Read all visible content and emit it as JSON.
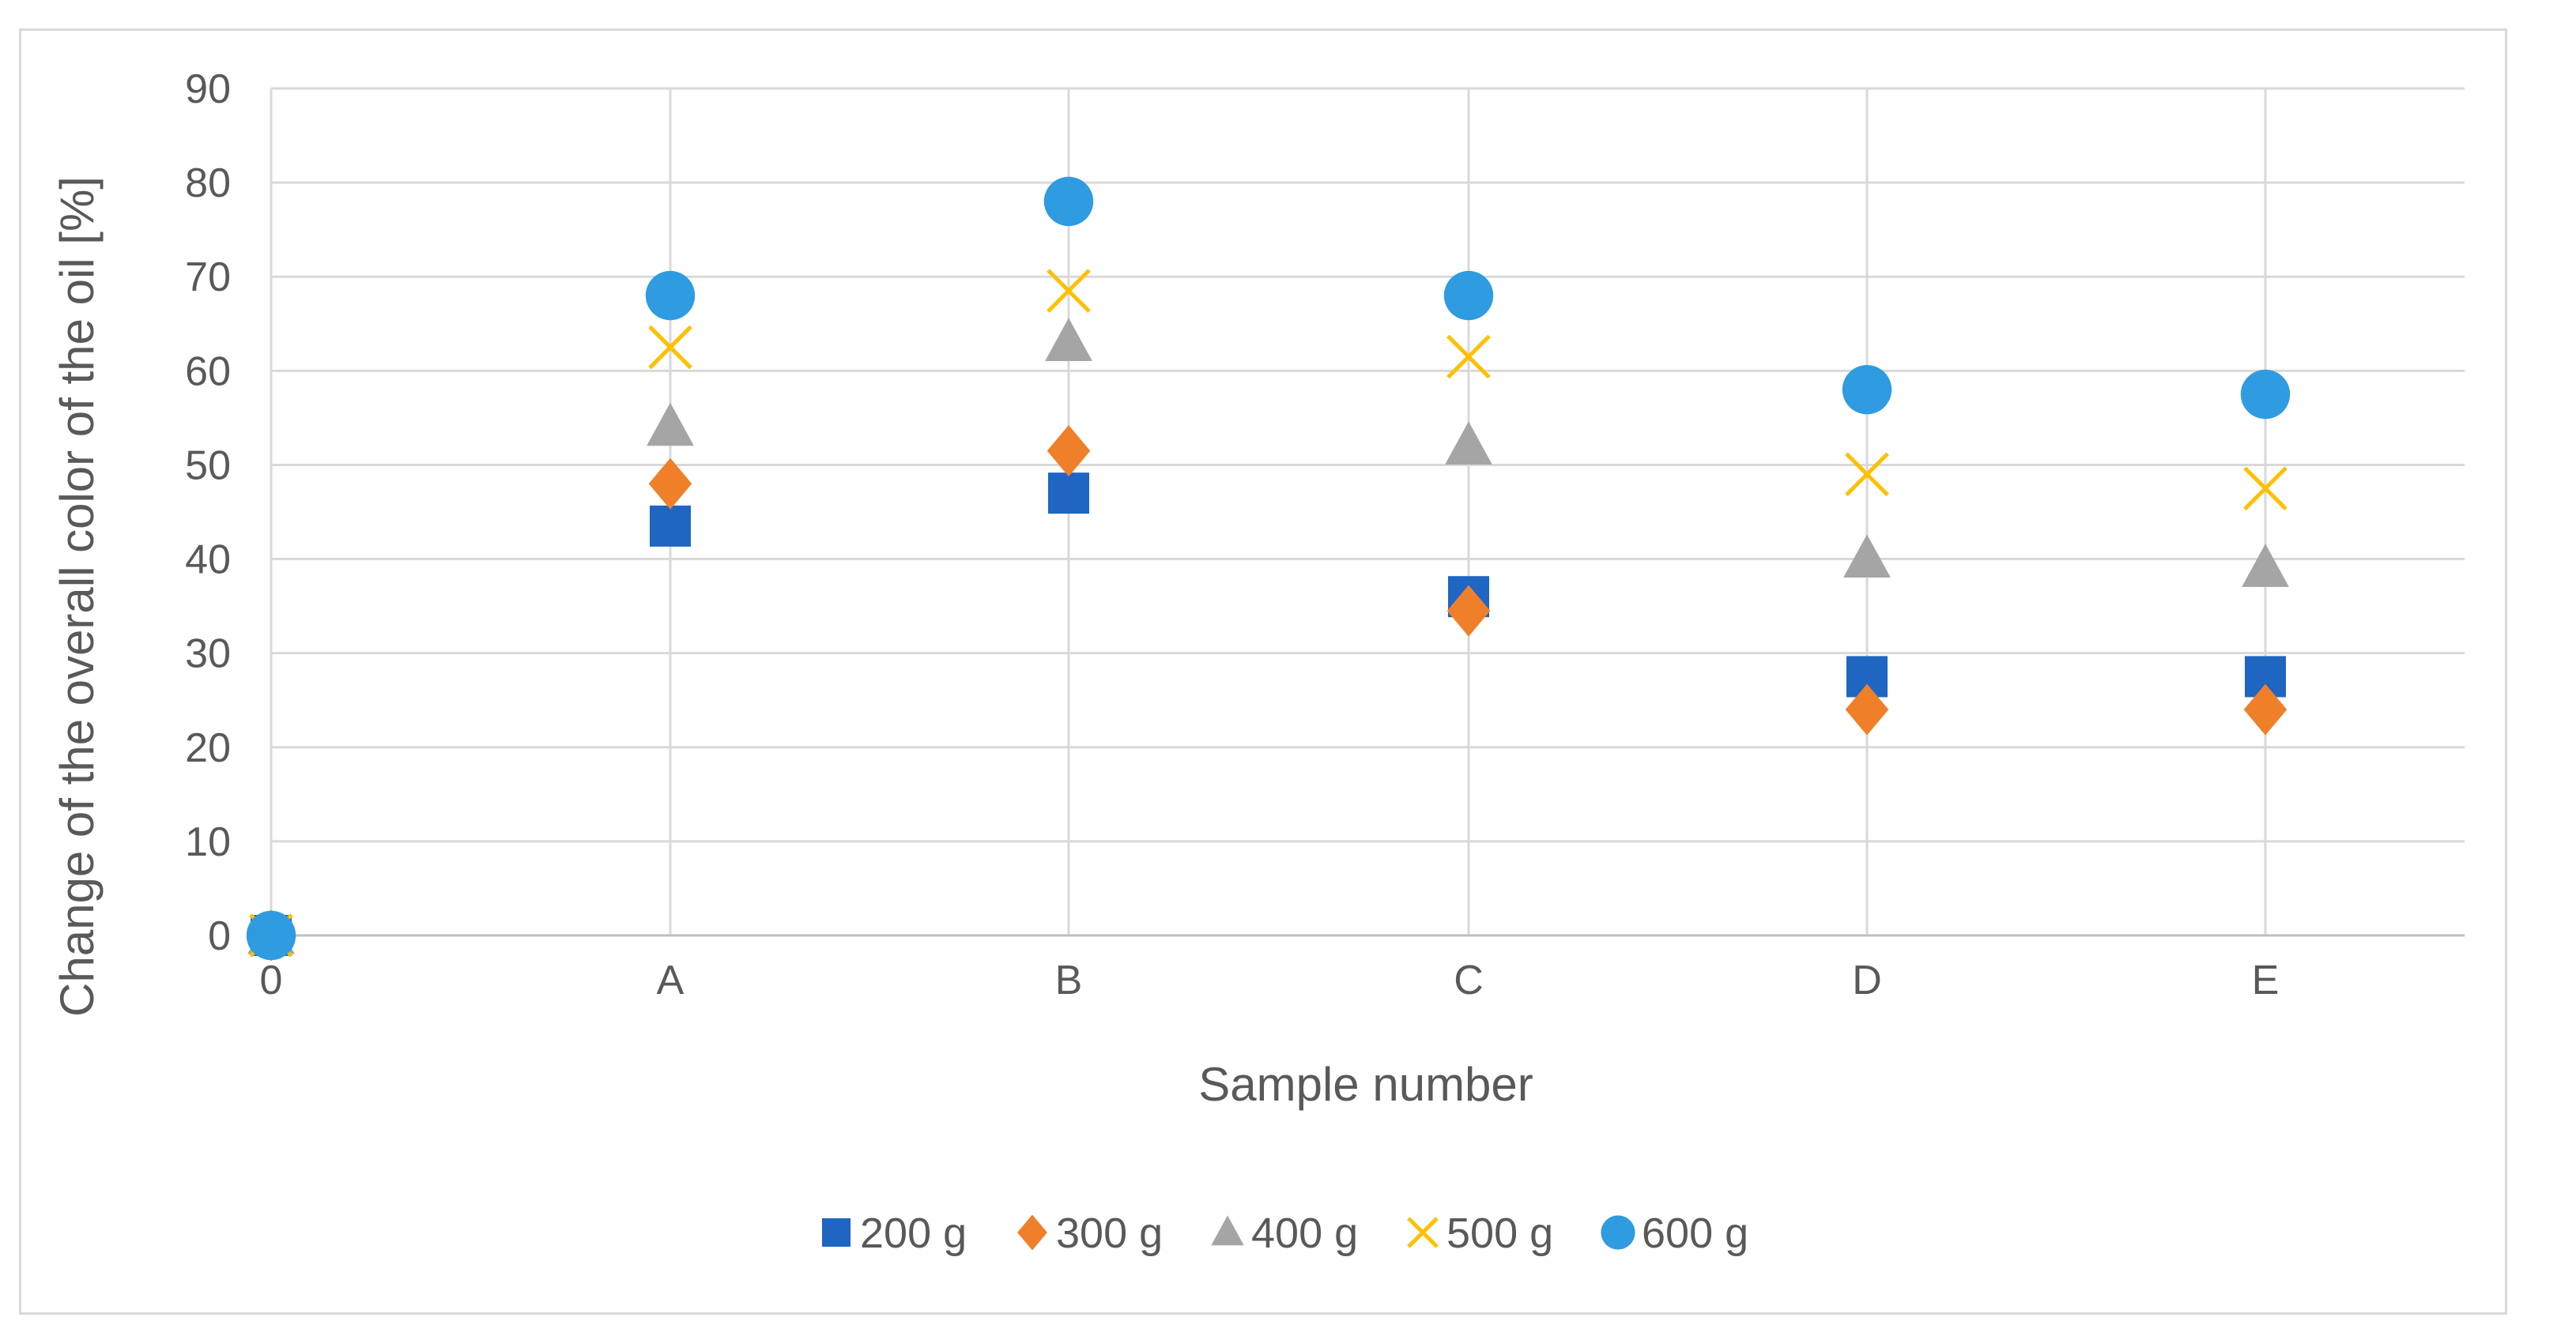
{
  "chart_data": {
    "type": "scatter",
    "title": "",
    "xlabel": "Sample number",
    "ylabel": "Change of the overall color of the oil [%]",
    "categories": [
      "0",
      "A",
      "B",
      "C",
      "D",
      "E"
    ],
    "ylim": [
      0,
      90
    ],
    "yticks": [
      0,
      10,
      20,
      30,
      40,
      50,
      60,
      70,
      80,
      90
    ],
    "grid": true,
    "legend_position": "bottom",
    "series": [
      {
        "name": "200 g",
        "marker": "square",
        "color": "#1f65c2",
        "values": [
          0,
          43.5,
          47,
          36,
          27.5,
          27.5
        ]
      },
      {
        "name": "300 g",
        "marker": "diamond",
        "color": "#f07f2a",
        "values": [
          0,
          48,
          51.5,
          34.5,
          24,
          24
        ]
      },
      {
        "name": "400 g",
        "marker": "triangle",
        "color": "#a5a5a5",
        "values": [
          0,
          54,
          63,
          52,
          40,
          39
        ]
      },
      {
        "name": "500 g",
        "marker": "x",
        "color": "#ffc000",
        "values": [
          0,
          62.5,
          68.5,
          61.5,
          49,
          47.5
        ]
      },
      {
        "name": "600 g",
        "marker": "circle",
        "color": "#2f9be0",
        "values": [
          0,
          68,
          78,
          68,
          58,
          57.5
        ]
      }
    ]
  }
}
